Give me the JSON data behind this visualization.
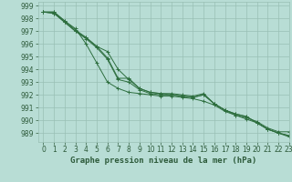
{
  "title": "Graphe pression niveau de la mer (hPa)",
  "background_color": "#b8ddd5",
  "grid_color": "#99bfb4",
  "line_color": "#2d6e3e",
  "text_color": "#2d5a3a",
  "xlim": [
    -0.5,
    23
  ],
  "ylim": [
    988.3,
    999.3
  ],
  "yticks": [
    989,
    990,
    991,
    992,
    993,
    994,
    995,
    996,
    997,
    998,
    999
  ],
  "xticks": [
    0,
    1,
    2,
    3,
    4,
    5,
    6,
    7,
    8,
    9,
    10,
    11,
    12,
    13,
    14,
    15,
    16,
    17,
    18,
    19,
    20,
    21,
    22,
    23
  ],
  "series": [
    [
      998.5,
      998.5,
      997.8,
      997.1,
      996.5,
      995.8,
      994.9,
      993.3,
      993.3,
      992.5,
      992.2,
      992.1,
      992.1,
      992.0,
      991.9,
      992.1,
      991.3,
      990.8,
      990.5,
      990.3,
      989.8,
      989.3,
      989.0,
      988.8
    ],
    [
      998.5,
      998.5,
      997.8,
      997.2,
      996.0,
      994.5,
      993.0,
      992.5,
      992.2,
      992.1,
      992.0,
      991.9,
      991.9,
      991.8,
      991.7,
      991.5,
      991.2,
      990.7,
      990.4,
      990.1,
      989.8,
      989.3,
      989.0,
      988.7
    ],
    [
      998.5,
      998.4,
      997.7,
      997.0,
      996.5,
      995.8,
      995.4,
      994.0,
      993.2,
      992.5,
      992.2,
      992.1,
      992.0,
      991.9,
      991.8,
      992.0,
      991.3,
      990.8,
      990.4,
      990.2,
      989.9,
      989.4,
      989.1,
      989.1
    ],
    [
      998.5,
      998.4,
      997.7,
      997.0,
      996.4,
      995.7,
      994.8,
      993.2,
      993.0,
      992.4,
      992.1,
      992.0,
      992.0,
      991.9,
      991.8,
      992.0,
      991.3,
      990.8,
      990.5,
      990.3,
      989.8,
      989.3,
      989.0,
      988.8
    ]
  ],
  "figsize": [
    3.2,
    2.0
  ],
  "dpi": 100,
  "tick_fontsize": 5.5,
  "label_fontsize": 6.5
}
